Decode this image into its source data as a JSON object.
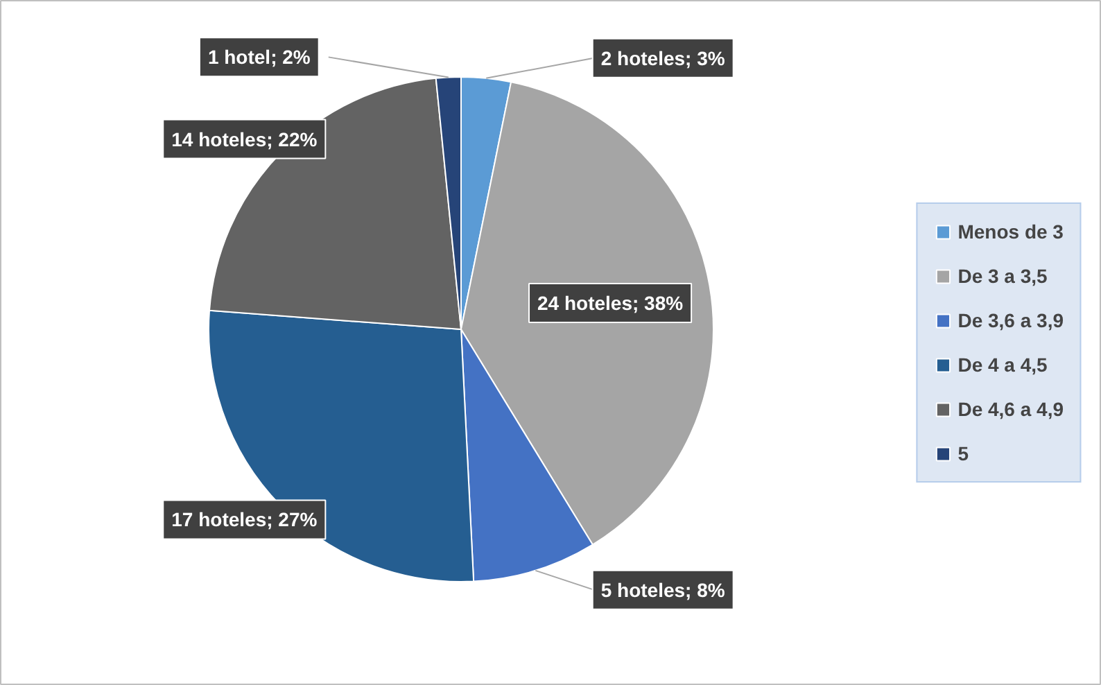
{
  "chart_data": {
    "type": "pie",
    "categories": [
      "Menos de 3",
      "De 3 a 3,5",
      "De 3,6 a 3,9",
      "De 4 a 4,5",
      "De 4,6 a 4,9",
      "5"
    ],
    "values": [
      2,
      24,
      5,
      17,
      14,
      1
    ],
    "colors": [
      "#5b9bd5",
      "#a5a5a5",
      "#4472c4",
      "#255e91",
      "#636363",
      "#264478"
    ],
    "value_labels": [
      "2 hoteles; 3%",
      "24 hoteles; 38%",
      "5 hoteles; 8%",
      "17 hoteles; 27%",
      "14 hoteles; 22%",
      "1 hotel; 2%"
    ],
    "legend": "right"
  }
}
